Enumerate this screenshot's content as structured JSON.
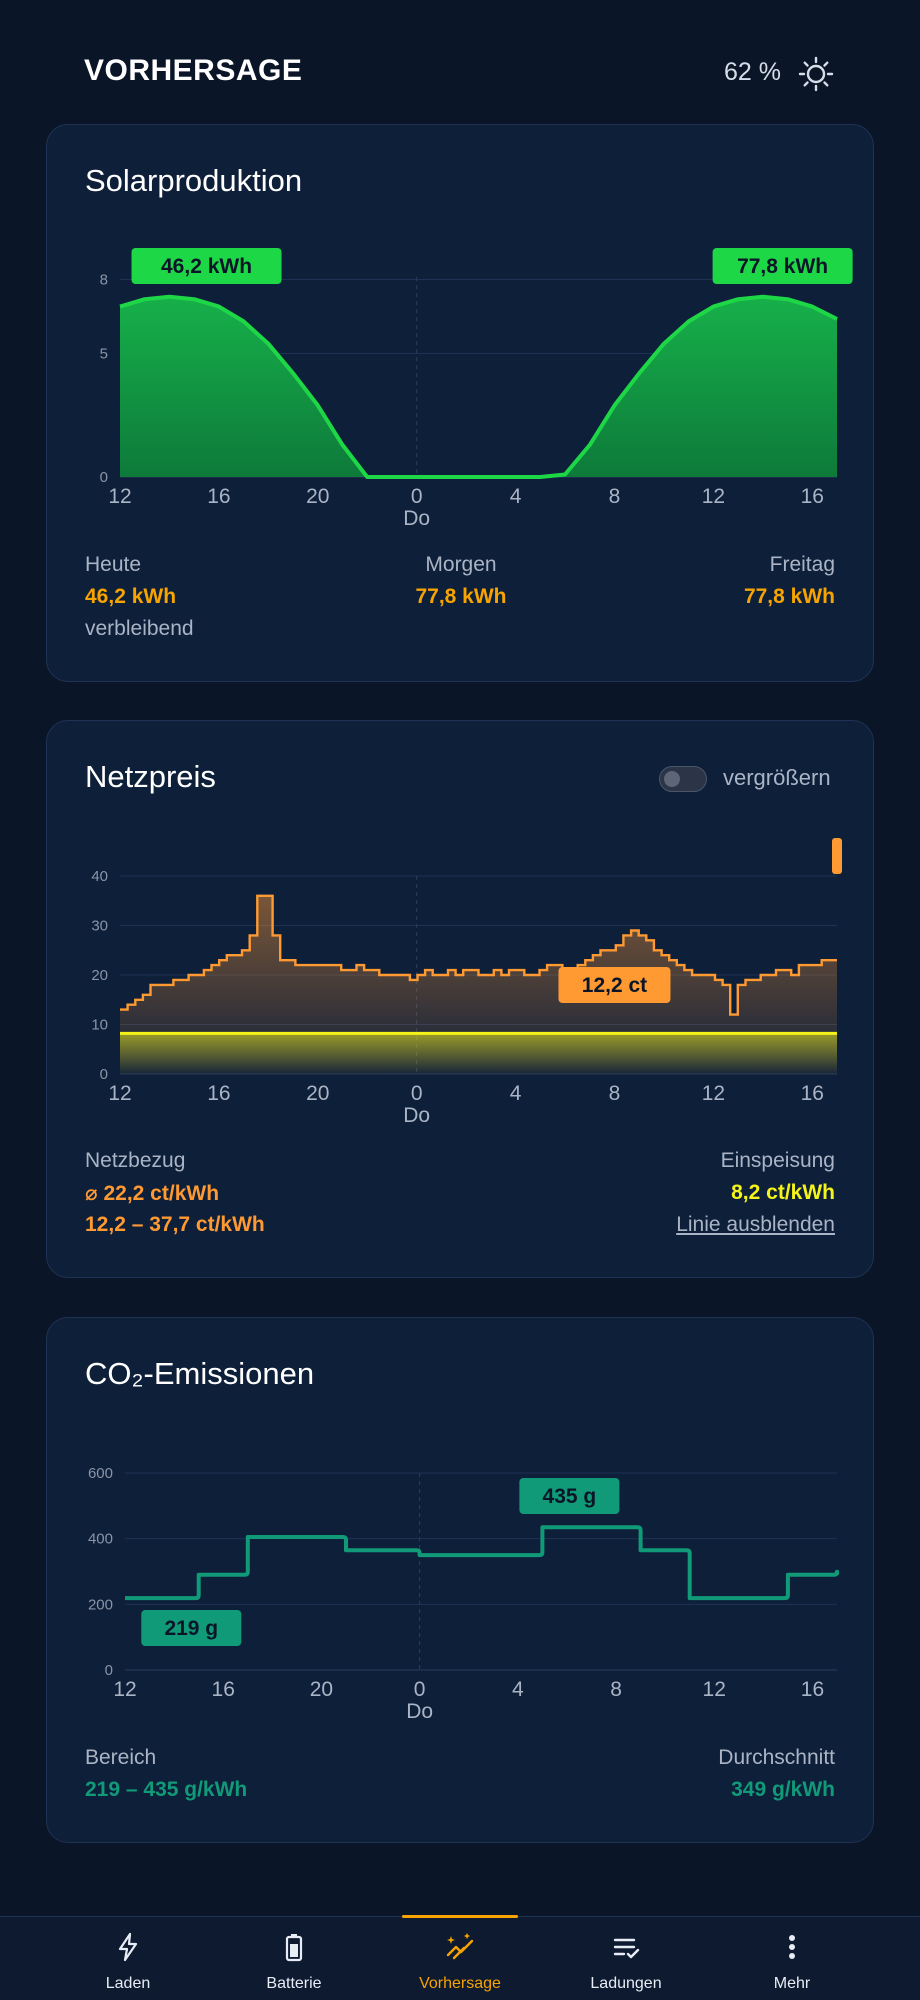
{
  "header": {
    "title": "VORHERSAGE",
    "battery_percent": "62 %",
    "settings_icon": "sun-gear-icon"
  },
  "solar": {
    "title": "Solarproduktion",
    "chart_data": {
      "type": "area",
      "x_ticks": [
        "12",
        "16",
        "20",
        "0",
        "4",
        "8",
        "12",
        "16"
      ],
      "x_day_label": "Do",
      "y_ticks": [
        "0",
        "5",
        "8"
      ],
      "ylim": [
        0,
        8.1
      ],
      "x_hours": [
        12,
        13,
        14,
        15,
        16,
        17,
        18,
        19,
        20,
        21,
        22,
        23,
        24,
        25,
        26,
        27,
        28,
        29,
        30,
        31,
        32,
        33,
        34,
        35,
        36,
        37,
        38,
        39,
        40,
        41
      ],
      "values": [
        6.9,
        7.2,
        7.3,
        7.2,
        6.9,
        6.3,
        5.4,
        4.2,
        2.9,
        1.3,
        0,
        0,
        0,
        0,
        0,
        0,
        0,
        0,
        0.1,
        1.3,
        2.9,
        4.2,
        5.4,
        6.3,
        6.9,
        7.2,
        7.3,
        7.2,
        6.9,
        6.4
      ],
      "x_range": [
        12,
        41
      ],
      "peak_labels": [
        "46,2 kWh",
        "77,8 kWh"
      ],
      "color": "#1ed746"
    },
    "summary": {
      "today_label": "Heute",
      "today_value": "46,2 kWh",
      "today_sub": "verbleibend",
      "tomorrow_label": "Morgen",
      "tomorrow_value": "77,8 kWh",
      "friday_label": "Freitag",
      "friday_value": "77,8 kWh"
    }
  },
  "price": {
    "title": "Netzpreis",
    "toggle_label": "vergrößern",
    "chart_data": {
      "type": "line",
      "x_ticks": [
        "12",
        "16",
        "20",
        "0",
        "4",
        "8",
        "12",
        "16"
      ],
      "x_day_label": "Do",
      "y_ticks": [
        "0",
        "10",
        "20",
        "30",
        "40"
      ],
      "ylim": [
        0,
        40
      ],
      "x_range": [
        12,
        41
      ],
      "grid_values": [
        13,
        14,
        15,
        16,
        18,
        18,
        18,
        19,
        19,
        20,
        20,
        21,
        22,
        23,
        24,
        24,
        25,
        28,
        36,
        36,
        28,
        23,
        23,
        22,
        22,
        22,
        22,
        22,
        22,
        21,
        21,
        22,
        21,
        21,
        20,
        20,
        20,
        20,
        19,
        20,
        21,
        20,
        20,
        21,
        20,
        21,
        21,
        20,
        20,
        21,
        20,
        21,
        21,
        20,
        20,
        21,
        22,
        22,
        21,
        21,
        22,
        23,
        24,
        25,
        25,
        26,
        28,
        29,
        28,
        27,
        25,
        24,
        23,
        22,
        21,
        20,
        20,
        20,
        19,
        18,
        12,
        18,
        19,
        19,
        20,
        20,
        21,
        21,
        20,
        22,
        22,
        22,
        23,
        23
      ],
      "feedin_value": 8.2,
      "min_label": "12,2 ct",
      "color": "#ff9a33",
      "feedin_color": "#f4f41a"
    },
    "summary": {
      "grid_label": "Netzbezug",
      "grid_avg": "⌀ 22,2 ct/kWh",
      "grid_range": "12,2 – 37,7 ct/kWh",
      "feedin_label": "Einspeisung",
      "feedin_value": "8,2 ct/kWh",
      "hide_link": "Linie ausblenden"
    }
  },
  "co2": {
    "title": "CO₂-Emissionen",
    "chart_data": {
      "type": "line",
      "x_ticks": [
        "12",
        "16",
        "20",
        "0",
        "4",
        "8",
        "12",
        "16"
      ],
      "x_day_label": "Do",
      "y_ticks": [
        "0",
        "200",
        "400",
        "600"
      ],
      "ylim": [
        0,
        600
      ],
      "x_range": [
        12,
        41
      ],
      "steps": [
        [
          12,
          219
        ],
        [
          15,
          290
        ],
        [
          17,
          405
        ],
        [
          21,
          365
        ],
        [
          24,
          350
        ],
        [
          29,
          435
        ],
        [
          33,
          365
        ],
        [
          35,
          219
        ],
        [
          39,
          290
        ],
        [
          41,
          290
        ]
      ],
      "min_label": "219 g",
      "max_label": "435 g",
      "color": "#119a78"
    },
    "summary": {
      "range_label": "Bereich",
      "range_value": "219 – 435 g/kWh",
      "avg_label": "Durchschnitt",
      "avg_value": "349 g/kWh"
    }
  },
  "nav": {
    "items": [
      {
        "label": "Laden",
        "icon": "lightning-icon"
      },
      {
        "label": "Batterie",
        "icon": "battery-icon"
      },
      {
        "label": "Vorhersage",
        "icon": "forecast-sparkle-icon",
        "active": true
      },
      {
        "label": "Ladungen",
        "icon": "list-check-icon"
      },
      {
        "label": "Mehr",
        "icon": "more-vertical-icon"
      }
    ]
  }
}
